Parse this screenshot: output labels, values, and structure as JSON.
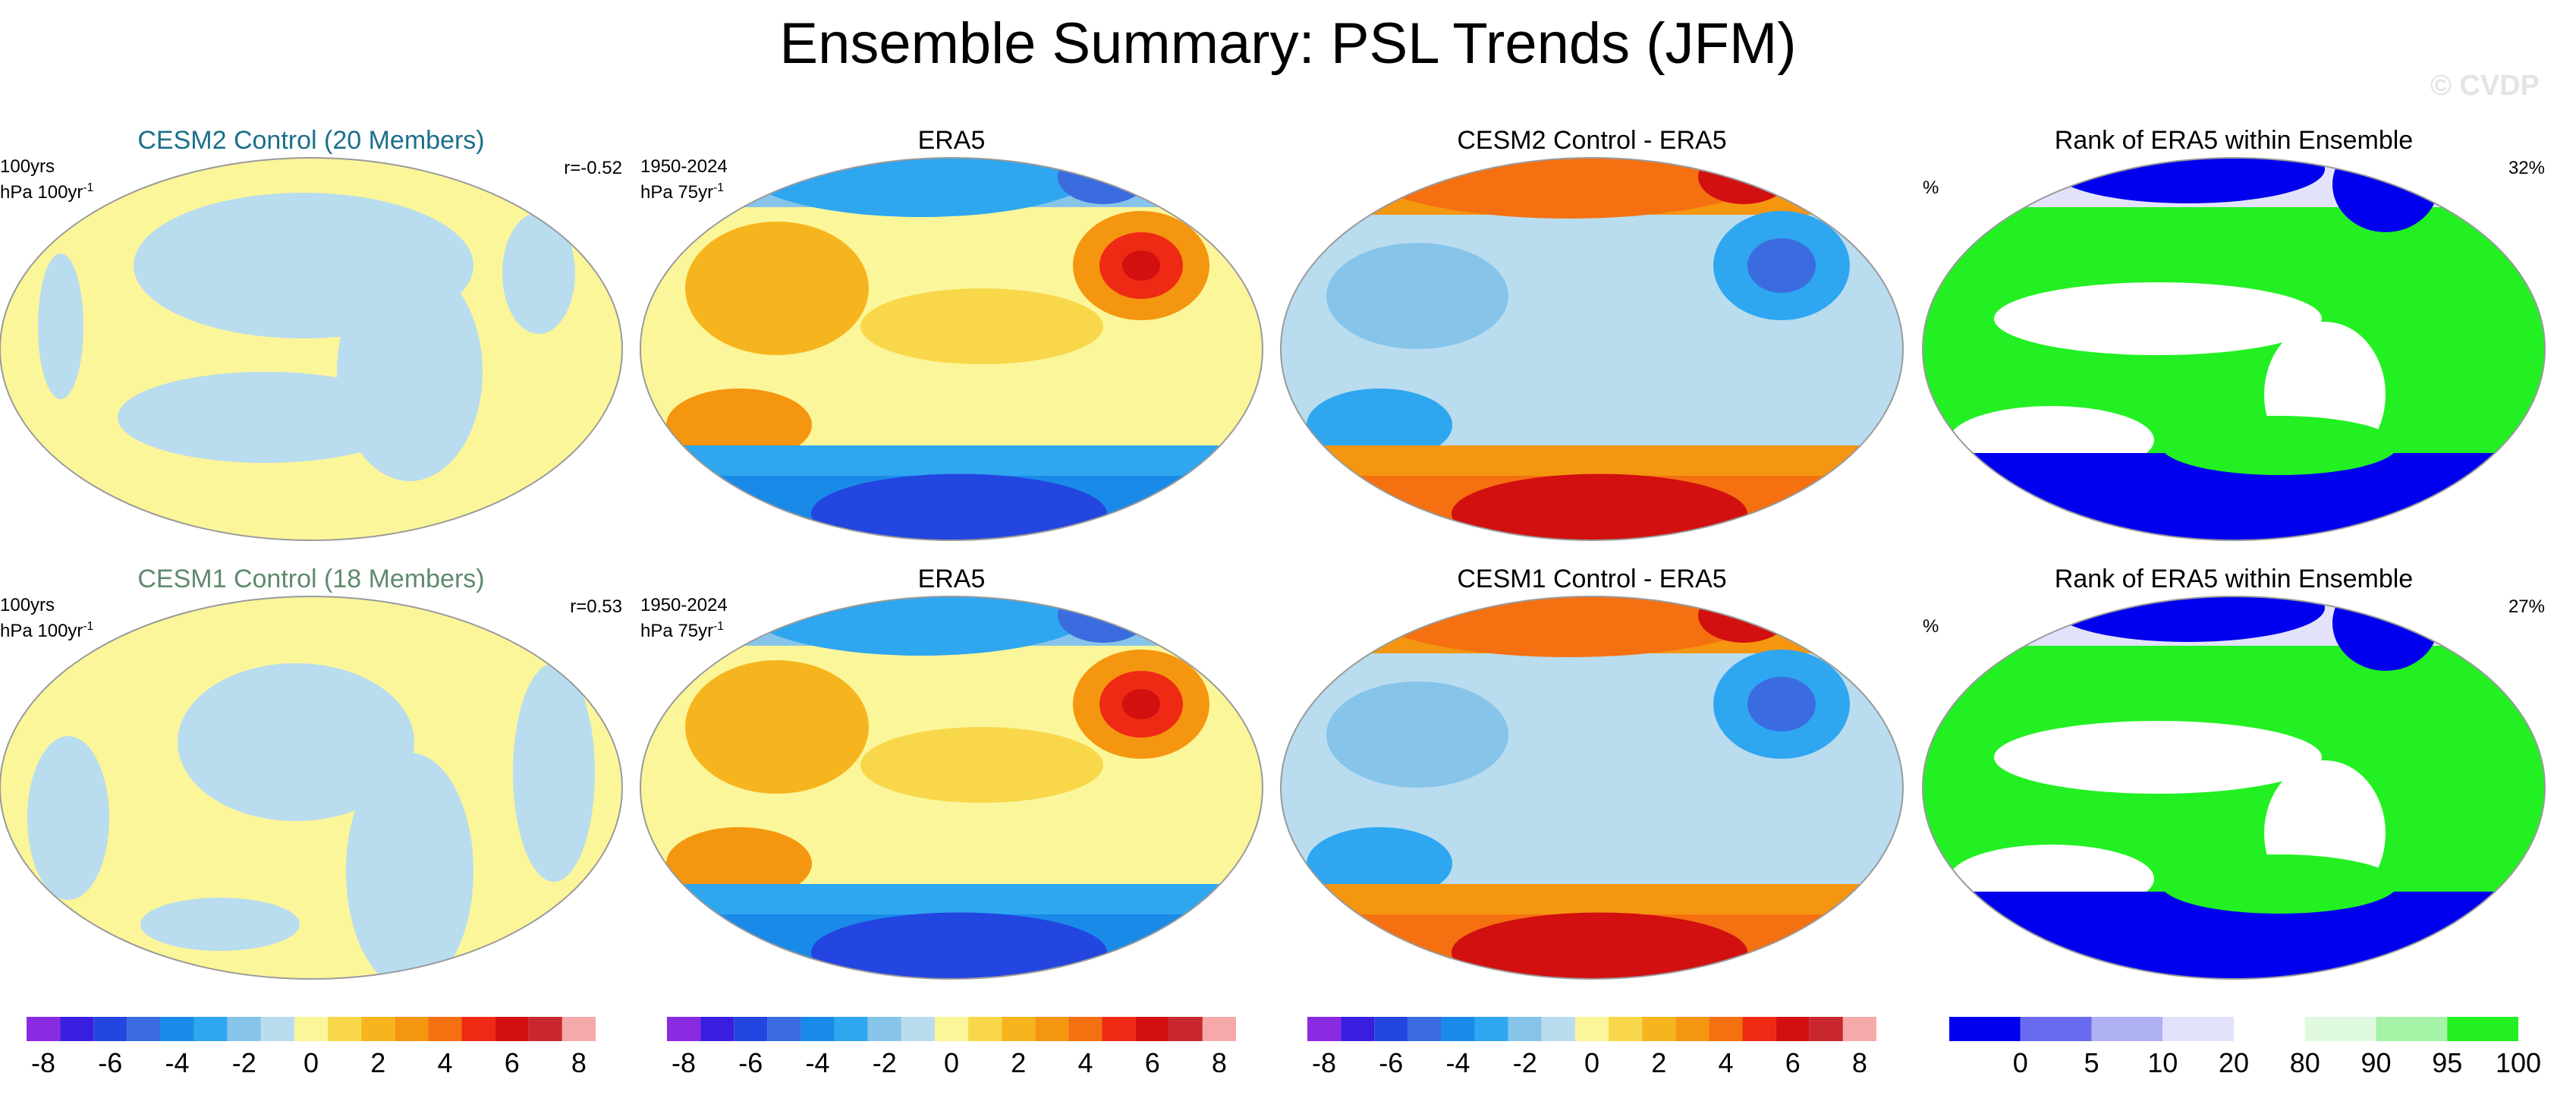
{
  "title": "Ensemble Summary: PSL Trends (JFM)",
  "watermark": "© CVDP",
  "rows": [
    {
      "panels": [
        {
          "title": "CESM2 Control (20 Members)",
          "title_style": "cesm2",
          "left_line1": "100yrs",
          "left_line2": "hPa 100yr",
          "left_sup": "-1",
          "right_label": "r=-0.52",
          "map": "ens"
        },
        {
          "title": "ERA5",
          "title_style": "plain",
          "left_line1": "1950-2024",
          "left_line2": "hPa 75yr",
          "left_sup": "-1",
          "right_label": "",
          "map": "obs"
        },
        {
          "title": "CESM2 Control - ERA5",
          "title_style": "plain",
          "left_line1": "",
          "left_line2": "",
          "left_sup": "",
          "right_label": "",
          "map": "diff"
        },
        {
          "title": "Rank of ERA5 within Ensemble",
          "title_style": "plain",
          "left_line1": "",
          "left_line2": "%",
          "left_sup": "",
          "right_label": "32%",
          "map": "rank"
        }
      ]
    },
    {
      "panels": [
        {
          "title": "CESM1 Control (18 Members)",
          "title_style": "cesm1",
          "left_line1": "100yrs",
          "left_line2": "hPa 100yr",
          "left_sup": "-1",
          "right_label": "r=0.53",
          "map": "ens"
        },
        {
          "title": "ERA5",
          "title_style": "plain",
          "left_line1": "1950-2024",
          "left_line2": "hPa 75yr",
          "left_sup": "-1",
          "right_label": "",
          "map": "obs"
        },
        {
          "title": "CESM1 Control - ERA5",
          "title_style": "plain",
          "left_line1": "",
          "left_line2": "",
          "left_sup": "",
          "right_label": "",
          "map": "diff"
        },
        {
          "title": "Rank of ERA5 within Ensemble",
          "title_style": "plain",
          "left_line1": "",
          "left_line2": "%",
          "left_sup": "",
          "right_label": "27%",
          "map": "rank"
        }
      ]
    }
  ],
  "chart_data": {
    "type": "heatmap",
    "projection": "Robinson-like global map, Pacific-centered",
    "trend_colorbar": {
      "levels": [
        -8,
        -7,
        -6,
        -5,
        -4,
        -3,
        -2,
        -1,
        0,
        1,
        2,
        3,
        4,
        5,
        6,
        7,
        8
      ],
      "tick_labels": [
        "-8",
        "-6",
        "-4",
        "-2",
        "0",
        "2",
        "4",
        "6",
        "8"
      ],
      "tick_values": [
        -8,
        -6,
        -4,
        -2,
        0,
        2,
        4,
        6,
        8
      ],
      "colors": [
        "#8a2be2",
        "#3a1ee0",
        "#2345e0",
        "#3a6cdf",
        "#1a8ae8",
        "#2fa6f0",
        "#86c4ea",
        "#b9dcef",
        "#fbf69a",
        "#f8d84a",
        "#f6b51e",
        "#f59610",
        "#f57010",
        "#ee2a14",
        "#d21010",
        "#c8282d",
        "#f6a9a9"
      ]
    },
    "rank_colorbar": {
      "levels": [
        0,
        5,
        10,
        20,
        80,
        90,
        95,
        100
      ],
      "tick_labels": [
        "0",
        "5",
        "10",
        "20",
        "80",
        "90",
        "95",
        "100"
      ],
      "colors": [
        "#0000ee",
        "#6a6af0",
        "#b0b0f5",
        "#e2e2fb",
        "#ffffff",
        "#e0fae0",
        "#a6f2a6",
        "#22f022"
      ]
    },
    "panels_per_row": 4,
    "rows": 2
  }
}
